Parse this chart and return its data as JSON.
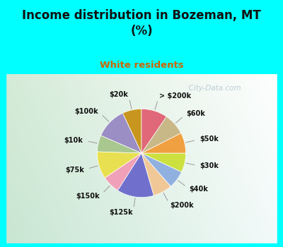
{
  "title": "Income distribution in Bozeman, MT\n(%)",
  "subtitle": "White residents",
  "title_color": "#111111",
  "subtitle_color": "#cc6600",
  "bg_color_top": "#00FFFF",
  "bg_color_chart_tl": "#c8eedd",
  "bg_color_chart_br": "#e8f8f0",
  "labels": [
    "$20k",
    "$100k",
    "$10k",
    "$75k",
    "$150k",
    "$125k",
    "$200k",
    "$40k",
    "$30k",
    "$50k",
    "$60k",
    "> $200k"
  ],
  "values": [
    7.0,
    11.5,
    6.0,
    10.0,
    6.5,
    13.5,
    7.0,
    6.5,
    7.0,
    7.5,
    8.0,
    9.5
  ],
  "colors": [
    "#c8961e",
    "#9b8ec4",
    "#a8c890",
    "#e8e050",
    "#f0a0b8",
    "#7070cc",
    "#f0c898",
    "#90b0e0",
    "#cce040",
    "#f0a040",
    "#c8b888",
    "#e06878"
  ],
  "startangle": 90,
  "label_fontsize": 7,
  "watermark": "  City-Data.com"
}
